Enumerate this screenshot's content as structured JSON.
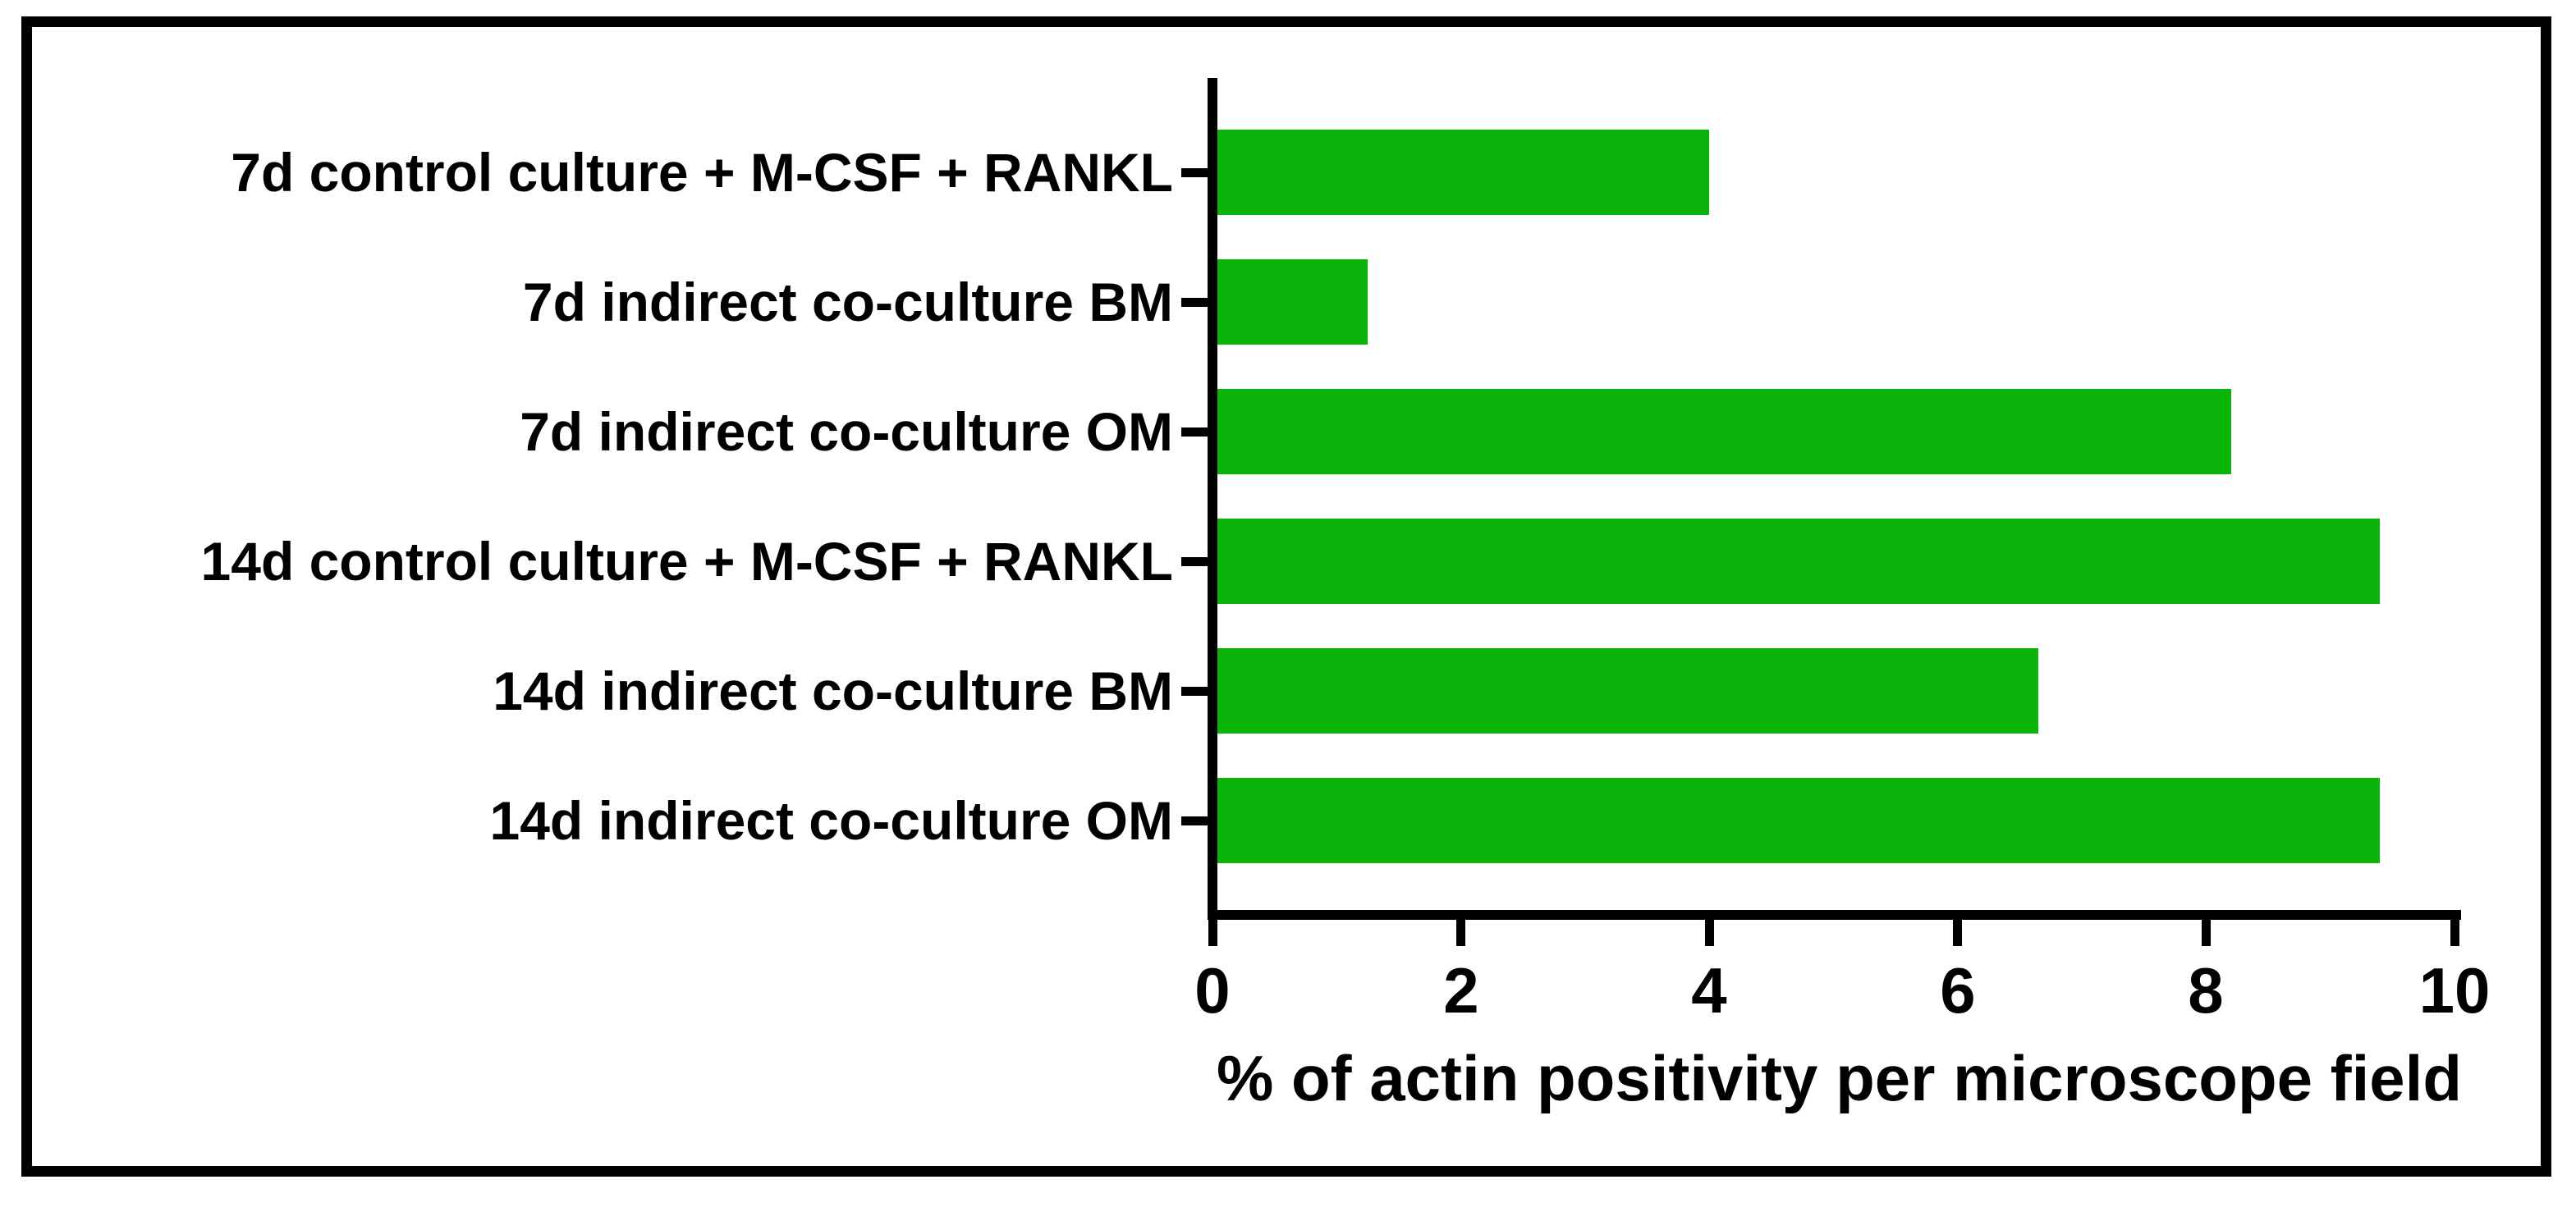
{
  "figure": {
    "background_color": "#ffffff",
    "border_color": "#000000"
  },
  "chart_data": {
    "type": "bar",
    "orientation": "horizontal",
    "categories": [
      "7d control culture + M-CSF + RANKL",
      "7d indirect co-culture BM",
      "7d indirect co-culture OM",
      "14d control culture + M-CSF + RANKL",
      "14d indirect co-culture BM",
      "14d indirect co-culture OM"
    ],
    "values": [
      4.0,
      1.25,
      8.2,
      9.4,
      6.65,
      9.4
    ],
    "title": "",
    "xlabel": "% of actin positivity per microscope field",
    "ylabel": "",
    "xlim": [
      0,
      10
    ],
    "xticks": [
      0,
      2,
      4,
      6,
      8,
      10
    ],
    "xtick_labels": [
      "0",
      "2",
      "4",
      "6",
      "8",
      "10"
    ],
    "grid": "off",
    "legend": "none",
    "bar_color": "#0bb30b",
    "axis_color": "#000000"
  }
}
